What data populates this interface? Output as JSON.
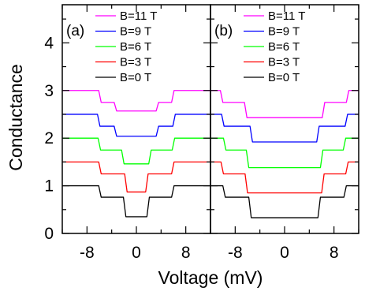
{
  "chart_data": {
    "type": "line",
    "xlabel": "Voltage (mV)",
    "ylabel": "Conductance",
    "ylim": [
      0,
      4.8
    ],
    "y_ticks": [
      "0",
      "1",
      "2",
      "3",
      "4"
    ],
    "y_tick_values": [
      0,
      1,
      2,
      3,
      4
    ],
    "legend_position": "top-right",
    "grid": false,
    "panels": [
      {
        "label": "(a)",
        "xlim": [
          -12,
          12
        ],
        "x_ticks": [
          "-8",
          "0",
          "8"
        ],
        "x_tick_values": [
          -8,
          0,
          8
        ],
        "series": [
          {
            "name": "B=11 T",
            "color": "#ff00ff",
            "x": [
              -12,
              -6.1,
              -5.7,
              -3.6,
              -3.2,
              3.2,
              3.6,
              5.7,
              6.1,
              12
            ],
            "y": [
              3.0,
              3.0,
              2.75,
              2.75,
              2.57,
              2.57,
              2.75,
              2.75,
              3.0,
              3.0
            ]
          },
          {
            "name": "B=9 T",
            "color": "#0000ff",
            "x": [
              -12,
              -6.3,
              -5.9,
              -3.6,
              -3.2,
              3.2,
              3.6,
              5.9,
              6.3,
              12
            ],
            "y": [
              2.5,
              2.5,
              2.25,
              2.25,
              2.04,
              2.04,
              2.25,
              2.25,
              2.5,
              2.5
            ]
          },
          {
            "name": "B=6 T",
            "color": "#00ff00",
            "x": [
              -12,
              -6.2,
              -5.8,
              -2.4,
              -2.0,
              2.0,
              2.4,
              5.8,
              6.2,
              12
            ],
            "y": [
              2.0,
              2.0,
              1.75,
              1.75,
              1.46,
              1.46,
              1.75,
              1.75,
              2.0,
              2.0
            ]
          },
          {
            "name": "B=3 T",
            "color": "#ff0000",
            "x": [
              -12,
              -6.1,
              -5.7,
              -1.9,
              -1.5,
              1.5,
              1.9,
              5.7,
              6.1,
              12
            ],
            "y": [
              1.5,
              1.5,
              1.25,
              1.25,
              0.87,
              0.87,
              1.25,
              1.25,
              1.5,
              1.5
            ]
          },
          {
            "name": "B=0 T",
            "color": "#000000",
            "x": [
              -12,
              -6.1,
              -5.7,
              -2.1,
              -1.7,
              1.7,
              2.1,
              5.7,
              6.1,
              12
            ],
            "y": [
              1.0,
              1.0,
              0.76,
              0.76,
              0.35,
              0.35,
              0.76,
              0.76,
              1.0,
              1.0
            ]
          }
        ]
      },
      {
        "label": "(b)",
        "xlim": [
          -12,
          12
        ],
        "x_ticks": [
          "-8",
          "0",
          "8"
        ],
        "x_tick_values": [
          -8,
          0,
          8
        ],
        "series": [
          {
            "name": "B=11 T",
            "color": "#ff00ff",
            "x": [
              -12,
              -10.4,
              -10.0,
              -6.5,
              -6.1,
              6.1,
              6.5,
              10.0,
              10.4,
              12
            ],
            "y": [
              3.0,
              3.0,
              2.75,
              2.75,
              2.43,
              2.43,
              2.75,
              2.75,
              3.0,
              3.0
            ]
          },
          {
            "name": "B=9 T",
            "color": "#0000ff",
            "x": [
              -12,
              -10.2,
              -9.8,
              -5.6,
              -5.2,
              5.2,
              5.6,
              9.8,
              10.2,
              12
            ],
            "y": [
              2.5,
              2.5,
              2.25,
              2.25,
              1.92,
              1.92,
              2.25,
              2.25,
              2.5,
              2.5
            ]
          },
          {
            "name": "B=6 T",
            "color": "#00ff00",
            "x": [
              -12,
              -9.9,
              -9.5,
              -6.2,
              -5.8,
              5.8,
              6.2,
              9.5,
              9.9,
              12
            ],
            "y": [
              2.0,
              2.0,
              1.75,
              1.75,
              1.38,
              1.38,
              1.75,
              1.75,
              2.0,
              2.0
            ]
          },
          {
            "name": "B=3 T",
            "color": "#ff0000",
            "x": [
              -12,
              -10.3,
              -9.9,
              -6.4,
              -6.0,
              6.0,
              6.4,
              9.9,
              10.3,
              12
            ],
            "y": [
              1.5,
              1.5,
              1.25,
              1.25,
              0.85,
              0.85,
              1.25,
              1.25,
              1.5,
              1.5
            ]
          },
          {
            "name": "B=0 T",
            "color": "#000000",
            "x": [
              -12,
              -10.0,
              -9.6,
              -5.8,
              -5.4,
              5.4,
              5.8,
              9.6,
              10.0,
              12
            ],
            "y": [
              1.0,
              1.0,
              0.76,
              0.76,
              0.33,
              0.33,
              0.76,
              0.76,
              1.0,
              1.0
            ]
          }
        ]
      }
    ]
  }
}
